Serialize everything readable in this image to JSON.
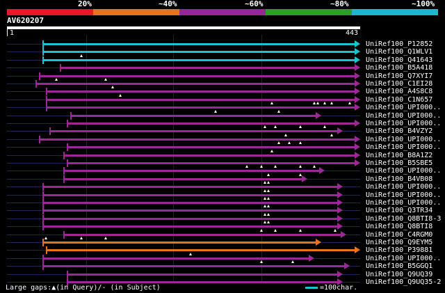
{
  "scale": {
    "labels": [
      "20%",
      "~40%",
      "~60%",
      "~80%",
      "~100%"
    ],
    "bands": [
      "#e8182c",
      "#e87318",
      "#932a93",
      "#27a02c",
      "#1cb8c8"
    ]
  },
  "query": {
    "name": "AV620207",
    "start": "1",
    "end": "443"
  },
  "colors": {
    "cyan": "#1cc2ce",
    "magenta": "#9a2896",
    "orange": "#e8731c",
    "gap": "#ffffdd",
    "faint": "#1e2750"
  },
  "hits": [
    {
      "label": "UniRef100_P12852",
      "color": "cyan",
      "s": 0.1,
      "e": 1.0,
      "gaps": []
    },
    {
      "label": "UniRef100_Q1WLV1",
      "color": "cyan",
      "s": 0.1,
      "e": 1.0,
      "gaps": []
    },
    {
      "label": "UniRef100_Q41643",
      "color": "cyan",
      "s": 0.1,
      "e": 1.0,
      "gaps": [
        0.21
      ]
    },
    {
      "label": "UniRef100_B5A418",
      "color": "magenta",
      "s": 0.15,
      "e": 1.0,
      "gaps": []
    },
    {
      "label": "UniRef100_Q7XYI7",
      "color": "magenta",
      "s": 0.09,
      "e": 1.0,
      "gaps": []
    },
    {
      "label": "UniRef100_C1EI28",
      "color": "magenta",
      "s": 0.08,
      "e": 1.0,
      "gaps": [
        0.14,
        0.28
      ]
    },
    {
      "label": "UniRef100_A4S8C8",
      "color": "magenta",
      "s": 0.11,
      "e": 1.0,
      "gaps": [
        0.3
      ]
    },
    {
      "label": "UniRef100_C1N657",
      "color": "magenta",
      "s": 0.11,
      "e": 1.0,
      "gaps": [
        0.32
      ]
    },
    {
      "label": "UniRef100_UPI000..",
      "color": "magenta",
      "s": 0.11,
      "e": 1.0,
      "gaps": [
        0.75,
        0.87,
        0.88,
        0.9,
        0.92,
        0.97
      ]
    },
    {
      "label": "UniRef100_UPI000..",
      "color": "magenta",
      "s": 0.18,
      "e": 0.89,
      "gaps": [
        0.59,
        0.77
      ]
    },
    {
      "label": "UniRef100_UPI000..",
      "color": "magenta",
      "s": 0.17,
      "e": 1.0,
      "gaps": []
    },
    {
      "label": "UniRef100_B4VZY2",
      "color": "magenta",
      "s": 0.12,
      "e": 0.95,
      "gaps": [
        0.73,
        0.76,
        0.83,
        0.9
      ]
    },
    {
      "label": "UniRef100_UPI000..",
      "color": "magenta",
      "s": 0.09,
      "e": 1.0,
      "gaps": [
        0.79,
        0.92
      ]
    },
    {
      "label": "UniRef100_UPI000..",
      "color": "magenta",
      "s": 0.17,
      "e": 1.0,
      "gaps": [
        0.77,
        0.8,
        0.83
      ]
    },
    {
      "label": "UniRef100_B8A1Z2",
      "color": "magenta",
      "s": 0.16,
      "e": 1.0,
      "gaps": [
        0.75
      ]
    },
    {
      "label": "UniRef100_B5SBE5",
      "color": "magenta",
      "s": 0.17,
      "e": 1.0,
      "gaps": []
    },
    {
      "label": "UniRef100_UPI000..",
      "color": "magenta",
      "s": 0.16,
      "e": 0.9,
      "gaps": [
        0.68,
        0.72,
        0.76,
        0.83,
        0.87
      ]
    },
    {
      "label": "UniRef100_B4VB08",
      "color": "magenta",
      "s": 0.16,
      "e": 0.85,
      "gaps": [
        0.74,
        0.83
      ]
    },
    {
      "label": "UniRef100_UPI000..",
      "color": "magenta",
      "s": 0.1,
      "e": 0.95,
      "gaps": [
        0.73,
        0.74
      ]
    },
    {
      "label": "UniRef100_UPI000..",
      "color": "magenta",
      "s": 0.1,
      "e": 0.95,
      "gaps": [
        0.73,
        0.74
      ]
    },
    {
      "label": "UniRef100_UPI000..",
      "color": "magenta",
      "s": 0.1,
      "e": 0.95,
      "gaps": [
        0.73,
        0.74
      ]
    },
    {
      "label": "UniRef100_Q3TR34",
      "color": "magenta",
      "s": 0.1,
      "e": 0.95,
      "gaps": [
        0.73,
        0.74
      ]
    },
    {
      "label": "UniRef100_Q8BTI8-3",
      "color": "magenta",
      "s": 0.1,
      "e": 0.95,
      "gaps": [
        0.73,
        0.74
      ]
    },
    {
      "label": "UniRef100_Q8BTI8",
      "color": "magenta",
      "s": 0.1,
      "e": 0.95,
      "gaps": [
        0.73,
        0.74
      ]
    },
    {
      "label": "UniRef100_C4RGM0",
      "color": "magenta",
      "s": 0.16,
      "e": 0.96,
      "gaps": [
        0.72,
        0.76,
        0.83,
        0.93
      ]
    },
    {
      "label": "UniRef100_Q9EYM5",
      "color": "orange",
      "s": 0.1,
      "e": 0.89,
      "gaps": [
        0.11,
        0.21,
        0.28
      ]
    },
    {
      "label": "UniRef100_P39881",
      "color": "orange",
      "s": 0.11,
      "e": 1.0,
      "gaps": []
    },
    {
      "label": "UniRef100_UPI000..",
      "color": "magenta",
      "s": 0.1,
      "e": 0.87,
      "gaps": [
        0.52
      ]
    },
    {
      "label": "UniRef100_B5GGQ1",
      "color": "magenta",
      "s": 0.1,
      "e": 0.97,
      "gaps": [
        0.72,
        0.81
      ]
    },
    {
      "label": "UniRef100_Q9UQ39",
      "color": "magenta",
      "s": 0.17,
      "e": 0.95,
      "gaps": []
    },
    {
      "label": "UniRef100_Q9UQ35-2",
      "color": "magenta",
      "s": 0.17,
      "e": 0.95,
      "gaps": []
    }
  ],
  "footer": {
    "text": "Large gaps:▲(in Query)/- (in Subject)",
    "legend": "=100char.",
    "legend_color": "#1cc2ce"
  }
}
